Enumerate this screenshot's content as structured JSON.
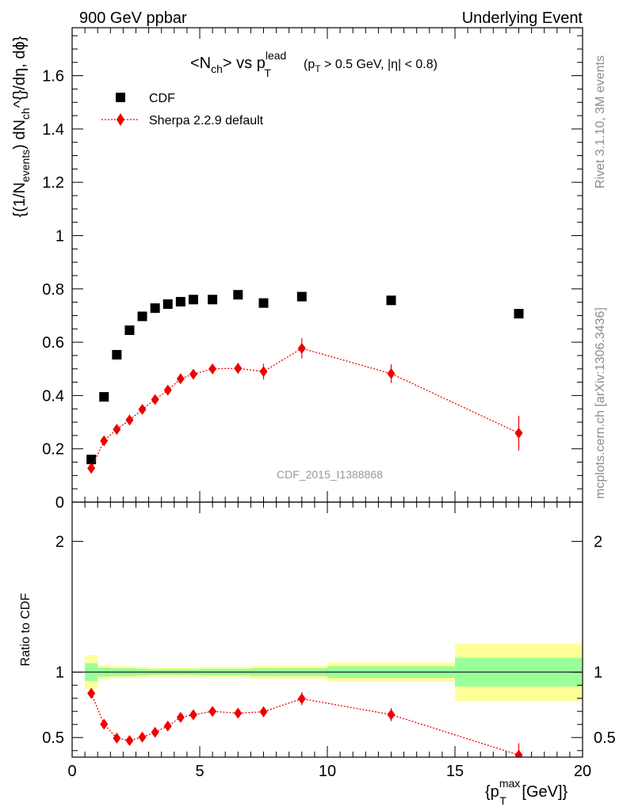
{
  "header": {
    "left": "900 GeV ppbar",
    "right": "Underlying Event"
  },
  "side_labels": {
    "rivet": "Rivet 3.1.10,  3M events",
    "mcplots": "mcplots.cern.ch [arXiv:1306.3436]"
  },
  "watermark": "CDF_2015_I1388868",
  "colors": {
    "data": "#000000",
    "mc": "#ee0000",
    "band_inner": "#99ff99",
    "band_outer": "#ffff99"
  },
  "chart_data": [
    {
      "type": "scatter",
      "title": "<N_ch> vs p_T^lead (p_T > 0.5 GeV, |η| < 0.8)",
      "xlabel": "{p_T^max [GeV]}",
      "ylabel": "{(1/N_events) dN_ch^{}/dη, dϕ}",
      "xlim": [
        0,
        20
      ],
      "ylim": [
        0,
        1.78
      ],
      "yticks": [
        0,
        0.2,
        0.4,
        0.6,
        0.8,
        1,
        1.2,
        1.4,
        1.6
      ],
      "legend": "top-left",
      "series": [
        {
          "name": "CDF",
          "marker": "square",
          "x": [
            0.75,
            1.25,
            1.75,
            2.25,
            2.75,
            3.25,
            3.75,
            4.25,
            4.75,
            5.5,
            6.5,
            7.5,
            9.0,
            12.5,
            17.5
          ],
          "y": [
            0.16,
            0.395,
            0.553,
            0.645,
            0.697,
            0.728,
            0.743,
            0.752,
            0.76,
            0.76,
            0.778,
            0.747,
            0.771,
            0.757,
            0.707
          ]
        },
        {
          "name": "Sherpa 2.2.9 default",
          "marker": "diamond",
          "x": [
            0.75,
            1.25,
            1.75,
            2.25,
            2.75,
            3.25,
            3.75,
            4.25,
            4.75,
            5.5,
            6.5,
            7.5,
            9.0,
            12.5,
            17.5
          ],
          "y": [
            0.127,
            0.23,
            0.273,
            0.308,
            0.348,
            0.385,
            0.42,
            0.463,
            0.48,
            0.5,
            0.502,
            0.49,
            0.577,
            0.482,
            0.259
          ],
          "err": [
            0.01,
            0.008,
            0.008,
            0.008,
            0.009,
            0.01,
            0.012,
            0.013,
            0.014,
            0.015,
            0.02,
            0.03,
            0.038,
            0.035,
            0.065
          ]
        }
      ]
    },
    {
      "type": "scatter",
      "ylabel": "Ratio to CDF",
      "xlim": [
        0,
        20
      ],
      "ylim": [
        0.35,
        2.3
      ],
      "xticks": [
        0,
        5,
        10,
        15,
        20
      ],
      "yticks": [
        0.5,
        1,
        2
      ],
      "bins": [
        [
          0.5,
          1.0
        ],
        [
          1.0,
          1.5
        ],
        [
          1.5,
          2.0
        ],
        [
          2.0,
          2.5
        ],
        [
          2.5,
          3.0
        ],
        [
          3.0,
          3.5
        ],
        [
          3.5,
          4.0
        ],
        [
          4.0,
          4.5
        ],
        [
          4.5,
          5.0
        ],
        [
          5.0,
          6.0
        ],
        [
          6.0,
          7.0
        ],
        [
          7.0,
          8.0
        ],
        [
          8.0,
          10.0
        ],
        [
          10.0,
          15.0
        ],
        [
          15.0,
          20.0
        ]
      ],
      "band_inner": [
        0.068,
        0.035,
        0.03,
        0.03,
        0.025,
        0.02,
        0.02,
        0.02,
        0.02,
        0.025,
        0.025,
        0.03,
        0.03,
        0.045,
        0.11
      ],
      "band_outer": [
        0.13,
        0.055,
        0.045,
        0.045,
        0.04,
        0.035,
        0.035,
        0.035,
        0.035,
        0.04,
        0.04,
        0.05,
        0.05,
        0.075,
        0.22
      ],
      "series": [
        {
          "name": "Sherpa 2.2.9 default",
          "x": [
            0.75,
            1.25,
            1.75,
            2.25,
            2.75,
            3.25,
            3.75,
            4.25,
            4.75,
            5.5,
            6.5,
            7.5,
            9.0,
            12.5,
            17.5
          ],
          "y": [
            0.838,
            0.602,
            0.495,
            0.477,
            0.503,
            0.54,
            0.588,
            0.654,
            0.674,
            0.7,
            0.686,
            0.697,
            0.797,
            0.675,
            0.366
          ],
          "err": [
            0.015,
            0.015,
            0.012,
            0.012,
            0.012,
            0.013,
            0.016,
            0.018,
            0.019,
            0.02,
            0.025,
            0.04,
            0.05,
            0.05,
            0.09
          ]
        }
      ]
    }
  ]
}
